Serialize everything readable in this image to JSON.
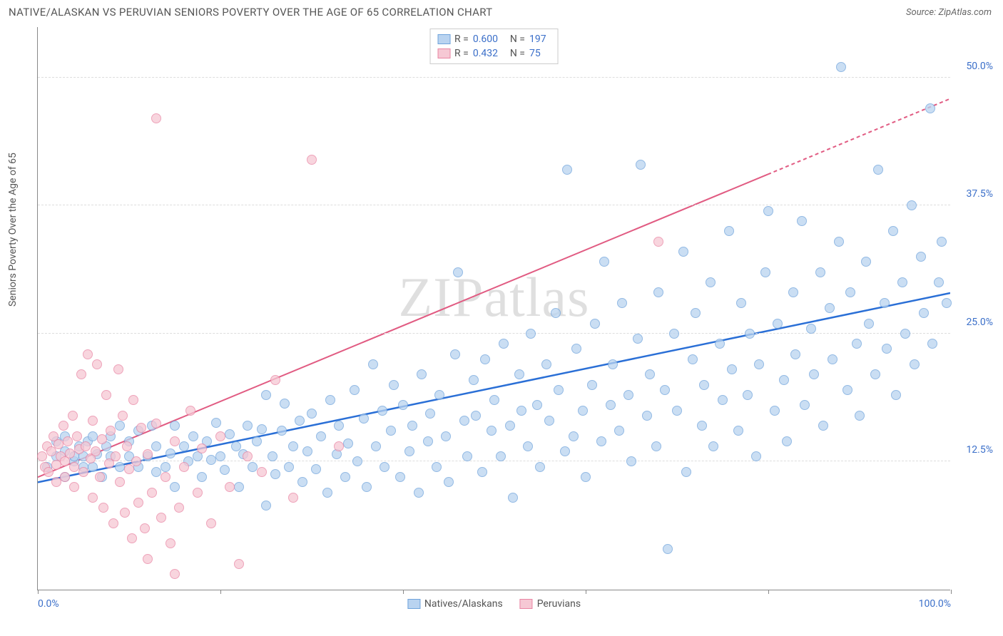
{
  "title": "NATIVE/ALASKAN VS PERUVIAN SENIORS POVERTY OVER THE AGE OF 65 CORRELATION CHART",
  "source_prefix": "Source: ",
  "source": "ZipAtlas.com",
  "ylabel": "Seniors Poverty Over the Age of 65",
  "watermark": "ZIPatlas",
  "chart": {
    "type": "scatter",
    "xlim": [
      0,
      100
    ],
    "ylim": [
      0,
      55
    ],
    "x_ticks": [
      0,
      20,
      40,
      60,
      80,
      100
    ],
    "x_tick_labels": {
      "0": "0.0%",
      "100": "100.0%"
    },
    "y_ticks": [
      12.5,
      25.0,
      37.5,
      50.0
    ],
    "y_tick_labels": [
      "12.5%",
      "25.0%",
      "37.5%",
      "50.0%"
    ],
    "grid_color": "#dddddd",
    "axis_color": "#888888",
    "background_color": "#ffffff",
    "point_radius": 7,
    "point_stroke_width": 1,
    "series": [
      {
        "name": "Natives/Alaskans",
        "fill": "#b9d3f0",
        "stroke": "#6fa3db",
        "fill_opacity": 0.75,
        "trend": {
          "color": "#2a6fd6",
          "width": 2.5,
          "x1": 0,
          "y1": 10.5,
          "x2": 100,
          "y2": 29,
          "dash_after_x": 100
        },
        "R": "0.600",
        "N": "197",
        "points": [
          [
            1,
            12
          ],
          [
            2,
            13
          ],
          [
            2,
            14.5
          ],
          [
            3,
            11
          ],
          [
            3,
            13.5
          ],
          [
            3,
            15
          ],
          [
            4,
            12.5
          ],
          [
            4,
            13
          ],
          [
            4.5,
            14
          ],
          [
            5,
            12
          ],
          [
            5,
            13
          ],
          [
            5.5,
            14.5
          ],
          [
            6,
            12
          ],
          [
            6,
            15
          ],
          [
            6.5,
            13.2
          ],
          [
            7,
            11
          ],
          [
            7.5,
            14
          ],
          [
            8,
            15
          ],
          [
            8,
            13
          ],
          [
            9,
            12
          ],
          [
            9,
            16
          ],
          [
            10,
            13
          ],
          [
            10,
            14.5
          ],
          [
            11,
            12
          ],
          [
            11,
            15.5
          ],
          [
            12,
            13
          ],
          [
            12.5,
            16
          ],
          [
            13,
            11.5
          ],
          [
            13,
            14
          ],
          [
            14,
            12
          ],
          [
            14.5,
            13.3
          ],
          [
            15,
            16
          ],
          [
            15,
            10
          ],
          [
            16,
            14
          ],
          [
            16.5,
            12.5
          ],
          [
            17,
            15
          ],
          [
            17.5,
            13
          ],
          [
            18,
            11
          ],
          [
            18.5,
            14.5
          ],
          [
            19,
            12.7
          ],
          [
            19.5,
            16.3
          ],
          [
            20,
            13
          ],
          [
            20.5,
            11.7
          ],
          [
            21,
            15.2
          ],
          [
            21.7,
            14
          ],
          [
            22,
            10
          ],
          [
            22.5,
            13.2
          ],
          [
            23,
            16
          ],
          [
            23.5,
            12
          ],
          [
            24,
            14.5
          ],
          [
            24.5,
            15.7
          ],
          [
            25,
            8.2
          ],
          [
            25,
            19
          ],
          [
            25.7,
            13
          ],
          [
            26,
            11.3
          ],
          [
            26.7,
            15.5
          ],
          [
            27,
            18.2
          ],
          [
            27.5,
            12
          ],
          [
            28,
            14
          ],
          [
            28.7,
            16.5
          ],
          [
            29,
            10.5
          ],
          [
            29.5,
            13.5
          ],
          [
            30,
            17.2
          ],
          [
            30.5,
            11.8
          ],
          [
            31,
            15
          ],
          [
            31.7,
            9.5
          ],
          [
            32,
            18.5
          ],
          [
            32.7,
            13.2
          ],
          [
            33,
            16
          ],
          [
            33.7,
            11
          ],
          [
            34,
            14.3
          ],
          [
            34.7,
            19.5
          ],
          [
            35,
            12.5
          ],
          [
            35.7,
            16.7
          ],
          [
            36,
            10
          ],
          [
            36.7,
            22
          ],
          [
            37,
            14
          ],
          [
            37.7,
            17.5
          ],
          [
            38,
            12
          ],
          [
            38.7,
            15.5
          ],
          [
            39,
            20
          ],
          [
            39.7,
            11
          ],
          [
            40,
            18
          ],
          [
            40.7,
            13.5
          ],
          [
            41,
            16
          ],
          [
            41.7,
            9.5
          ],
          [
            42,
            21
          ],
          [
            42.7,
            14.5
          ],
          [
            43,
            17.2
          ],
          [
            43.7,
            12
          ],
          [
            44,
            19
          ],
          [
            44.7,
            15
          ],
          [
            45,
            10.5
          ],
          [
            45.7,
            23
          ],
          [
            46,
            31
          ],
          [
            46.7,
            16.5
          ],
          [
            47,
            13
          ],
          [
            47.7,
            20.5
          ],
          [
            48,
            17
          ],
          [
            48.7,
            11.5
          ],
          [
            49,
            22.5
          ],
          [
            49.7,
            15.5
          ],
          [
            50,
            18.5
          ],
          [
            50.7,
            13
          ],
          [
            51,
            24
          ],
          [
            51.7,
            16
          ],
          [
            52,
            9
          ],
          [
            52.7,
            21
          ],
          [
            53,
            17.5
          ],
          [
            53.7,
            14
          ],
          [
            54,
            25
          ],
          [
            54.7,
            18
          ],
          [
            55,
            12
          ],
          [
            55.7,
            22
          ],
          [
            56,
            16.5
          ],
          [
            56.7,
            27
          ],
          [
            57,
            19.5
          ],
          [
            57.7,
            13.5
          ],
          [
            58,
            41
          ],
          [
            58.7,
            15
          ],
          [
            59,
            23.5
          ],
          [
            59.7,
            17.5
          ],
          [
            60,
            11
          ],
          [
            60.7,
            20
          ],
          [
            61,
            26
          ],
          [
            61.7,
            14.5
          ],
          [
            62,
            32
          ],
          [
            62.7,
            18
          ],
          [
            63,
            22
          ],
          [
            63.7,
            15.5
          ],
          [
            64,
            28
          ],
          [
            64.7,
            19
          ],
          [
            65,
            12.5
          ],
          [
            65.7,
            24.5
          ],
          [
            66,
            41.5
          ],
          [
            66.7,
            17
          ],
          [
            67,
            21
          ],
          [
            67.7,
            14
          ],
          [
            68,
            29
          ],
          [
            68.7,
            19.5
          ],
          [
            69,
            4
          ],
          [
            69.7,
            25
          ],
          [
            70,
            17.5
          ],
          [
            70.7,
            33
          ],
          [
            71,
            11.5
          ],
          [
            71.7,
            22.5
          ],
          [
            72,
            27
          ],
          [
            72.7,
            16
          ],
          [
            73,
            20
          ],
          [
            73.7,
            30
          ],
          [
            74,
            14
          ],
          [
            74.7,
            24
          ],
          [
            75,
            18.5
          ],
          [
            75.7,
            35
          ],
          [
            76,
            21.5
          ],
          [
            76.7,
            15.5
          ],
          [
            77,
            28
          ],
          [
            77.7,
            19
          ],
          [
            78,
            25
          ],
          [
            78.7,
            13
          ],
          [
            79,
            22
          ],
          [
            79.7,
            31
          ],
          [
            80,
            37
          ],
          [
            80.7,
            17.5
          ],
          [
            81,
            26
          ],
          [
            81.7,
            20.5
          ],
          [
            82,
            14.5
          ],
          [
            82.7,
            29
          ],
          [
            83,
            23
          ],
          [
            83.7,
            36
          ],
          [
            84,
            18
          ],
          [
            84.7,
            25.5
          ],
          [
            85,
            21
          ],
          [
            85.7,
            31
          ],
          [
            86,
            16
          ],
          [
            86.7,
            27.5
          ],
          [
            87,
            22.5
          ],
          [
            87.7,
            34
          ],
          [
            88,
            51
          ],
          [
            88.7,
            19.5
          ],
          [
            89,
            29
          ],
          [
            89.7,
            24
          ],
          [
            90,
            17
          ],
          [
            90.7,
            32
          ],
          [
            91,
            26
          ],
          [
            91.7,
            21
          ],
          [
            92,
            41
          ],
          [
            92.7,
            28
          ],
          [
            93,
            23.5
          ],
          [
            93.7,
            35
          ],
          [
            94,
            19
          ],
          [
            94.7,
            30
          ],
          [
            95,
            25
          ],
          [
            95.7,
            37.5
          ],
          [
            96,
            22
          ],
          [
            96.7,
            32.5
          ],
          [
            97,
            27
          ],
          [
            97.7,
            47
          ],
          [
            98,
            24
          ],
          [
            98.7,
            30
          ],
          [
            99,
            34
          ],
          [
            99.5,
            28
          ]
        ]
      },
      {
        "name": "Peruvians",
        "fill": "#f6c8d4",
        "stroke": "#e985a3",
        "fill_opacity": 0.75,
        "trend": {
          "color": "#e15b82",
          "width": 2,
          "x1": 0,
          "y1": 11,
          "x2": 100,
          "y2": 48,
          "dash_after_x": 80
        },
        "R": "0.432",
        "N": "75",
        "points": [
          [
            0.5,
            13
          ],
          [
            0.8,
            12
          ],
          [
            1,
            14
          ],
          [
            1.2,
            11.5
          ],
          [
            1.5,
            13.5
          ],
          [
            1.7,
            15
          ],
          [
            2,
            12.2
          ],
          [
            2,
            10.5
          ],
          [
            2.3,
            14.2
          ],
          [
            2.5,
            13
          ],
          [
            2.8,
            16
          ],
          [
            3,
            11
          ],
          [
            3,
            12.5
          ],
          [
            3.3,
            14.5
          ],
          [
            3.5,
            13.3
          ],
          [
            3.8,
            17
          ],
          [
            4,
            12
          ],
          [
            4,
            10
          ],
          [
            4.3,
            15
          ],
          [
            4.5,
            13.7
          ],
          [
            4.8,
            21
          ],
          [
            5,
            11.5
          ],
          [
            5.2,
            14
          ],
          [
            5.5,
            23
          ],
          [
            5.8,
            12.8
          ],
          [
            6,
            9
          ],
          [
            6,
            16.5
          ],
          [
            6.3,
            13.5
          ],
          [
            6.5,
            22
          ],
          [
            6.8,
            11
          ],
          [
            7,
            14.7
          ],
          [
            7.2,
            8
          ],
          [
            7.5,
            19
          ],
          [
            7.8,
            12.3
          ],
          [
            8,
            15.5
          ],
          [
            8.3,
            6.5
          ],
          [
            8.5,
            13
          ],
          [
            8.8,
            21.5
          ],
          [
            9,
            10.5
          ],
          [
            9.3,
            17
          ],
          [
            9.5,
            7.5
          ],
          [
            9.8,
            14
          ],
          [
            10,
            11.8
          ],
          [
            10.3,
            5
          ],
          [
            10.5,
            18.5
          ],
          [
            10.8,
            12.5
          ],
          [
            11,
            8.5
          ],
          [
            11.3,
            15.8
          ],
          [
            11.7,
            6
          ],
          [
            12,
            13.2
          ],
          [
            12.5,
            9.5
          ],
          [
            13,
            46
          ],
          [
            13,
            16.2
          ],
          [
            13.5,
            7
          ],
          [
            14,
            11
          ],
          [
            14.5,
            4.5
          ],
          [
            15,
            14.5
          ],
          [
            15.5,
            8
          ],
          [
            16,
            12
          ],
          [
            16.7,
            17.5
          ],
          [
            17.5,
            9.5
          ],
          [
            18,
            13.8
          ],
          [
            19,
            6.5
          ],
          [
            20,
            15
          ],
          [
            21,
            10
          ],
          [
            22,
            2.5
          ],
          [
            23,
            13
          ],
          [
            24.5,
            11.5
          ],
          [
            26,
            20.5
          ],
          [
            28,
            9
          ],
          [
            30,
            42
          ],
          [
            33,
            14
          ],
          [
            68,
            34
          ],
          [
            12,
            3
          ],
          [
            15,
            1.5
          ]
        ]
      }
    ]
  },
  "legend_bottom": [
    {
      "label": "Natives/Alaskans",
      "fill": "#b9d3f0",
      "stroke": "#6fa3db"
    },
    {
      "label": "Peruvians",
      "fill": "#f6c8d4",
      "stroke": "#e985a3"
    }
  ]
}
